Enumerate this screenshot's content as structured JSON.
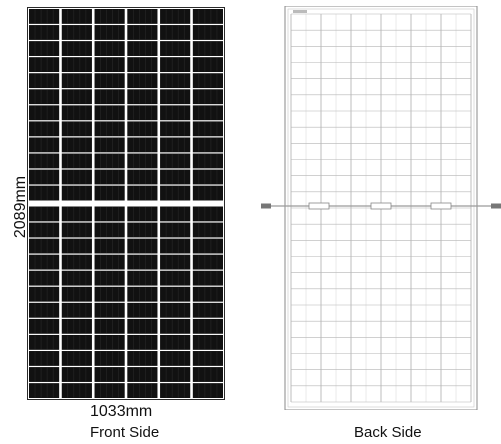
{
  "dimensions": {
    "height": "2089mm",
    "width": "1033mm"
  },
  "front": {
    "caption": "Front Side",
    "cell_columns": 6,
    "cell_rows_per_half": 12,
    "colors": {
      "cell": "#111111",
      "gap": "#ffffff",
      "frame": "#2a2a2a"
    }
  },
  "back": {
    "caption": "Back Side",
    "cell_columns": 6,
    "cell_rows_per_half": 12,
    "colors": {
      "grid": "#b5b5b5",
      "frame": "#8a8a8a",
      "cable": "#9a9a9a"
    }
  }
}
